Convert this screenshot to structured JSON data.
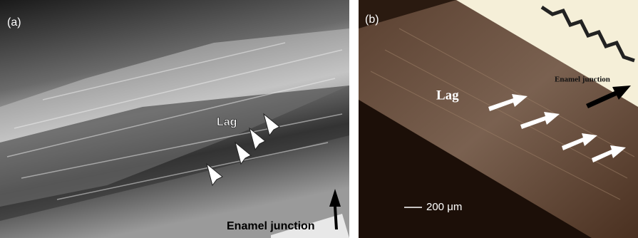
{
  "panels": [
    {
      "label": "(a)",
      "annotations": [
        "Lag",
        "Enamel junction"
      ]
    },
    {
      "label": "(b)",
      "annotations": [
        "Lag",
        "Enamel junction"
      ],
      "scale_bar": "200 μm"
    }
  ]
}
